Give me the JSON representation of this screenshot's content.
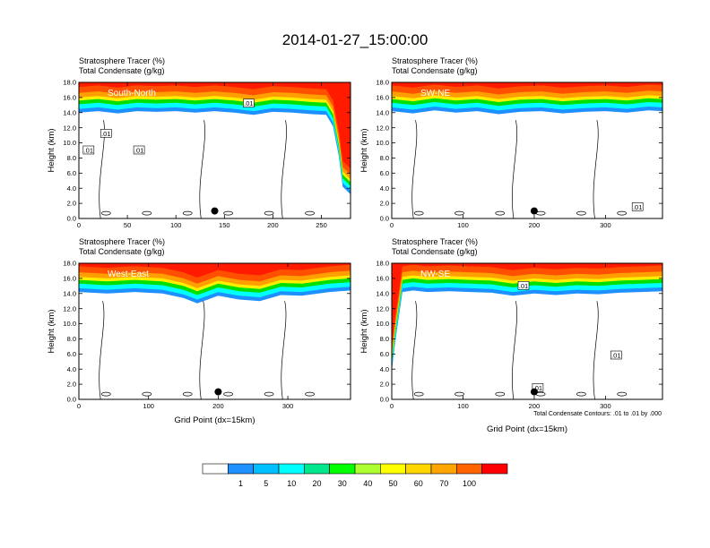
{
  "figure": {
    "title": "2014-01-27_15:00:00",
    "contour_note": "Total Condensate Contours: .01 to .01 by .000",
    "colorbar": {
      "colors": [
        "#ffffff",
        "#1e90ff",
        "#00bfff",
        "#00ffff",
        "#00e68c",
        "#00ff00",
        "#adff2f",
        "#ffff00",
        "#ffd700",
        "#ffa500",
        "#ff6400",
        "#ff0000"
      ],
      "labels": [
        "1",
        "5",
        "10",
        "20",
        "30",
        "40",
        "50",
        "60",
        "70",
        "100"
      ]
    },
    "colors": {
      "red": "#ff1a00",
      "orange_red": "#ff5000",
      "orange": "#ffa000",
      "yellow": "#ffee00",
      "green": "#00e000",
      "cyan": "#00ffff",
      "blue": "#1e8fff",
      "contour": "#000000"
    }
  },
  "chart_data": [
    {
      "type": "heatmap",
      "name": "South-North",
      "header": [
        "Stratosphere Tracer   (%)",
        "Total Condensate   (g/kg)"
      ],
      "ylabel": "Height (km)",
      "xlabel": "",
      "xlim": [
        0,
        280
      ],
      "ylim": [
        0,
        18
      ],
      "xticks": [
        0,
        50,
        100,
        150,
        200,
        250
      ],
      "yticks": [
        "0.0",
        "2.0",
        "4.0",
        "6.0",
        "8.0",
        "10.0",
        "12.0",
        "14.0",
        "16.0",
        "18.0"
      ],
      "tracer_front": {
        "x": [
          0,
          20,
          40,
          60,
          80,
          100,
          120,
          140,
          160,
          180,
          200,
          220,
          240,
          255,
          262,
          268,
          272,
          280
        ],
        "height_km": [
          14.8,
          15.0,
          14.7,
          15.0,
          14.9,
          15.0,
          14.8,
          15.0,
          14.8,
          14.5,
          14.9,
          14.8,
          14.6,
          14.5,
          13.0,
          9.0,
          5.0,
          4.0
        ]
      },
      "contour_labels": [
        ".01",
        ".01",
        ".01",
        ".01"
      ],
      "contour_label_pos": [
        [
          10,
          9.0
        ],
        [
          28,
          11.2
        ],
        [
          62,
          9.0
        ],
        [
          175,
          15.2
        ]
      ],
      "marker": {
        "x": 140,
        "y": 1.0
      }
    },
    {
      "type": "heatmap",
      "name": "SW-NE",
      "header": [
        "Stratosphere Tracer   (%)",
        "Total Condensate   (g/kg)"
      ],
      "ylabel": "Height (km)",
      "xlabel": "",
      "xlim": [
        0,
        380
      ],
      "ylim": [
        0,
        18
      ],
      "xticks": [
        0,
        100,
        200,
        300
      ],
      "yticks": [
        "0.0",
        "2.0",
        "4.0",
        "6.0",
        "8.0",
        "10.0",
        "12.0",
        "14.0",
        "16.0",
        "18.0"
      ],
      "tracer_front": {
        "x": [
          0,
          30,
          60,
          90,
          120,
          150,
          180,
          210,
          240,
          270,
          300,
          330,
          360,
          380
        ],
        "height_km": [
          15.0,
          14.7,
          15.1,
          14.8,
          15.0,
          14.6,
          14.9,
          15.0,
          14.7,
          14.9,
          15.0,
          14.8,
          15.1,
          15.0
        ]
      },
      "contour_labels": [
        ".01"
      ],
      "contour_label_pos": [
        [
          345,
          1.5
        ]
      ],
      "marker": {
        "x": 200,
        "y": 1.0
      }
    },
    {
      "type": "heatmap",
      "name": "West-East",
      "header": [
        "Stratosphere Tracer   (%)",
        "Total Condensate   (g/kg)"
      ],
      "ylabel": "Height (km)",
      "xlabel": "Grid Point (dx=15km)",
      "xlim": [
        0,
        390
      ],
      "ylim": [
        0,
        18
      ],
      "xticks": [
        0,
        100,
        200,
        300
      ],
      "yticks": [
        "0.0",
        "2.0",
        "4.0",
        "6.0",
        "8.0",
        "10.0",
        "12.0",
        "14.0",
        "16.0",
        "18.0"
      ],
      "tracer_front": {
        "x": [
          0,
          40,
          80,
          120,
          150,
          170,
          200,
          230,
          260,
          290,
          320,
          360,
          390
        ],
        "height_km": [
          15.0,
          14.8,
          15.0,
          14.8,
          14.2,
          13.5,
          14.5,
          14.0,
          13.8,
          14.6,
          14.5,
          15.0,
          15.2
        ]
      },
      "contour_labels": [],
      "contour_label_pos": [],
      "marker": {
        "x": 200,
        "y": 1.0
      }
    },
    {
      "type": "heatmap",
      "name": "NW-SE",
      "header": [
        "Stratosphere Tracer   (%)",
        "Total Condensate   (g/kg)"
      ],
      "ylabel": "Height (km)",
      "xlabel": "Grid Point (dx=15km)",
      "xlim": [
        0,
        380
      ],
      "ylim": [
        0,
        18
      ],
      "xticks": [
        0,
        100,
        200,
        300
      ],
      "yticks": [
        "0.0",
        "2.0",
        "4.0",
        "6.0",
        "8.0",
        "10.0",
        "12.0",
        "14.0",
        "16.0",
        "18.0"
      ],
      "tracer_front": {
        "x": [
          0,
          5,
          15,
          30,
          50,
          80,
          110,
          140,
          170,
          200,
          230,
          260,
          290,
          320,
          350,
          380
        ],
        "height_km": [
          4.5,
          8.5,
          15.0,
          15.2,
          15.0,
          15.1,
          15.0,
          14.9,
          14.5,
          14.8,
          14.6,
          14.8,
          14.7,
          14.9,
          15.0,
          15.1
        ]
      },
      "contour_labels": [
        ".01",
        ".01",
        ".01"
      ],
      "contour_label_pos": [
        [
          205,
          1.5
        ],
        [
          315,
          5.8
        ],
        [
          185,
          15.0
        ]
      ],
      "marker": {
        "x": 200,
        "y": 1.0
      }
    }
  ]
}
